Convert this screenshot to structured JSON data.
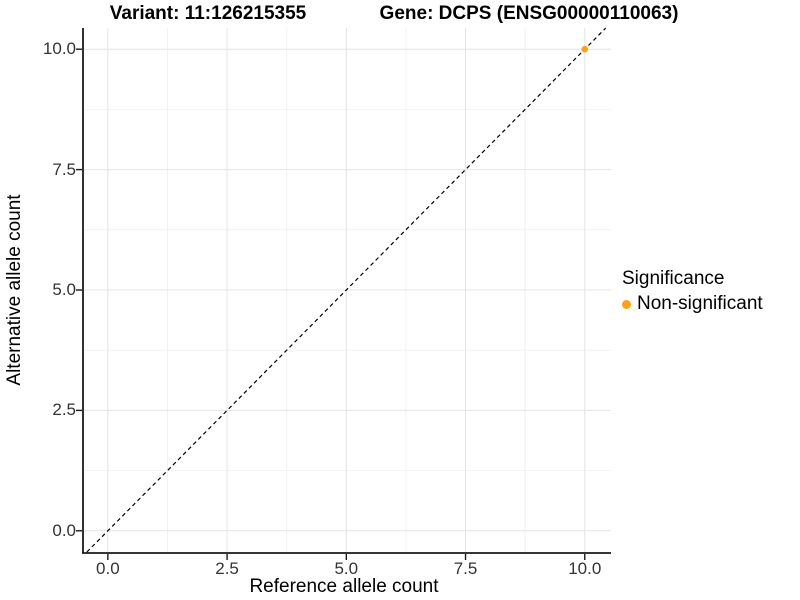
{
  "chart_data": {
    "type": "scatter",
    "title_variant": "Variant: 11:126215355",
    "title_gene": "Gene: DCPS (ENSG00000110063)",
    "xlabel": "Reference allele count",
    "ylabel": "Alternative allele count",
    "x_ticks": [
      0,
      2.5,
      5,
      7.5,
      10
    ],
    "x_tick_labels": [
      "0.0",
      "2.5",
      "5.0",
      "7.5",
      "10.0"
    ],
    "y_ticks": [
      0,
      2.5,
      5,
      7.5,
      10
    ],
    "y_tick_labels": [
      "0.0",
      "2.5",
      "5.0",
      "7.5",
      "10.0"
    ],
    "x_minor_ticks": [
      1.25,
      3.75,
      6.25,
      8.75
    ],
    "y_minor_ticks": [
      1.25,
      3.75,
      6.25,
      8.75
    ],
    "xlim": [
      -0.5,
      10.55
    ],
    "ylim": [
      -0.44,
      10.44
    ],
    "grid": true,
    "points": [
      {
        "x": 10,
        "y": 10,
        "series": "Non-significant"
      }
    ],
    "identity_line": {
      "equation": "y = x",
      "style": "dashed",
      "color": "#000000"
    },
    "legend": {
      "title": "Significance",
      "position": "right",
      "items": [
        {
          "label": "Non-significant",
          "color": "#F9A11B"
        }
      ]
    },
    "colors": {
      "axis_line": "#1A1A1A",
      "tick_text": "#333333",
      "grid_major": "#E4E4E4",
      "grid_minor": "#F2F2F2",
      "background": "#FFFFFF"
    }
  }
}
